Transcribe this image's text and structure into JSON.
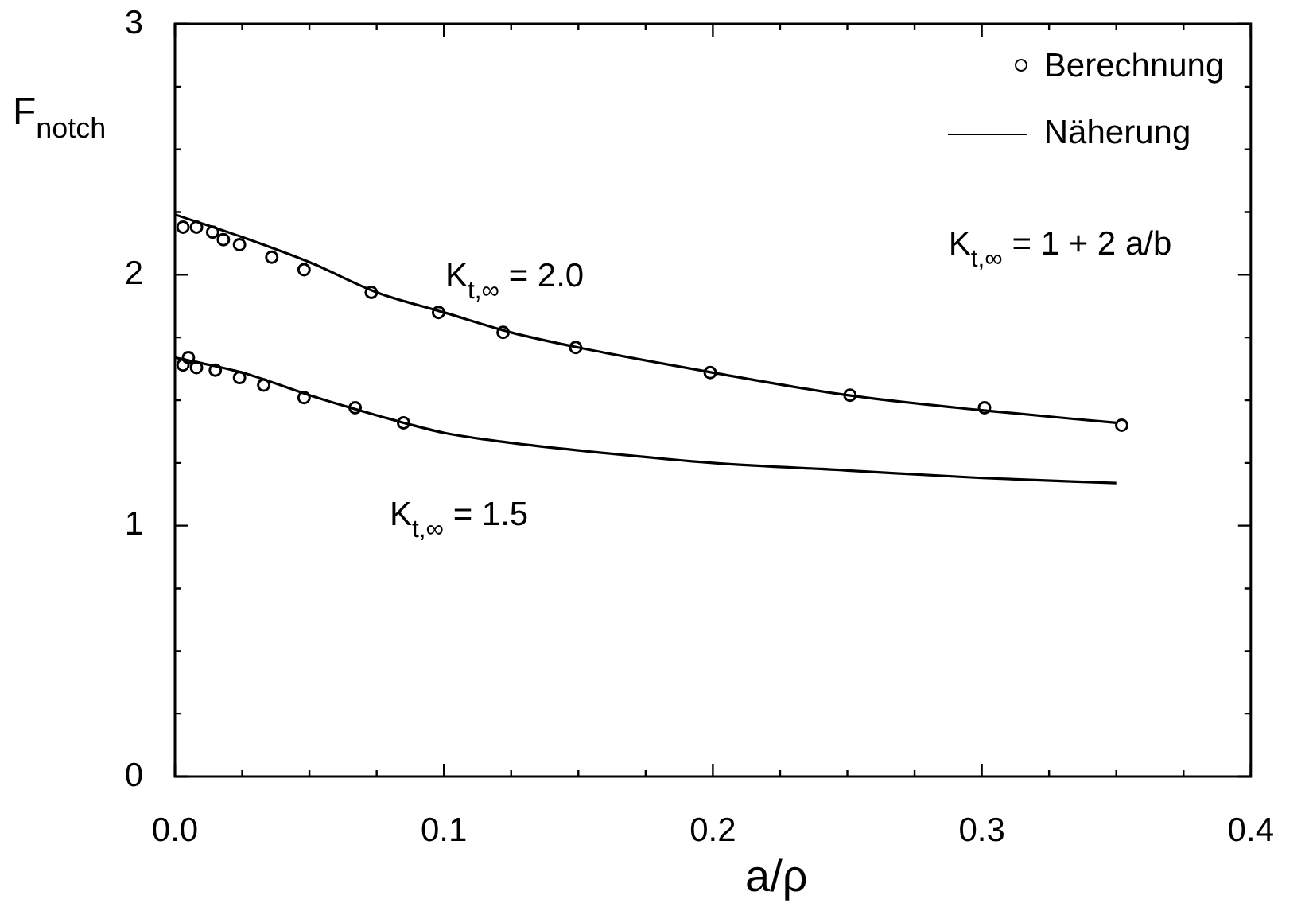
{
  "chart_data": {
    "type": "scatter",
    "xlabel": "a/ρ",
    "ylabel": "F$_{notch}$",
    "xlim": [
      0,
      0.4
    ],
    "ylim": [
      0,
      3
    ],
    "xticks": [
      {
        "value": 0,
        "label": "0.0"
      },
      {
        "value": 0.025,
        "label": null
      },
      {
        "value": 0.05,
        "label": null
      },
      {
        "value": 0.075,
        "label": null
      },
      0.1,
      {
        "value": 0.125,
        "label": null
      },
      {
        "value": 0.15,
        "label": null
      },
      {
        "value": 0.175,
        "label": null
      },
      0.2,
      {
        "value": 0.225,
        "label": null
      },
      {
        "value": 0.25,
        "label": null
      },
      {
        "value": 0.275,
        "label": null
      },
      0.3,
      {
        "value": 0.325,
        "label": null
      },
      {
        "value": 0.35,
        "label": null
      },
      {
        "value": 0.375,
        "label": null
      },
      0.4
    ],
    "yticks": [
      0,
      {
        "value": 0.25,
        "label": null
      },
      {
        "value": 0.5,
        "label": null
      },
      {
        "value": 0.75,
        "label": null
      },
      1,
      {
        "value": 1.25,
        "label": null
      },
      {
        "value": 1.5,
        "label": null
      },
      {
        "value": 1.75,
        "label": null
      },
      2,
      {
        "value": 2.25,
        "label": null
      },
      {
        "value": 2.5,
        "label": null
      },
      {
        "value": 2.75,
        "label": null
      },
      3
    ],
    "grid": false,
    "legend": "top right",
    "series": [
      {
        "name": "Berechnung",
        "type": "scatter",
        "marker": "circle",
        "color": "#000000",
        "x": [
          0.003,
          0.008,
          0.014,
          0.018,
          0.024,
          0.036,
          0.048,
          0.073,
          0.098,
          0.122,
          0.149,
          0.199,
          0.251,
          0.301,
          0.352
        ],
        "values": [
          2.19,
          2.19,
          2.17,
          2.14,
          2.12,
          2.07,
          2.02,
          1.93,
          1.85,
          1.77,
          1.71,
          1.61,
          1.52,
          1.47,
          1.4
        ]
      },
      {
        "type": "scatter",
        "marker": "circle",
        "color": "#000000",
        "x": [
          0.005,
          0.003,
          0.008,
          0.015,
          0.024,
          0.033,
          0.048,
          0.067,
          0.085
        ],
        "values": [
          1.67,
          1.64,
          1.63,
          1.62,
          1.59,
          1.56,
          1.51,
          1.47,
          1.41
        ]
      },
      {
        "name": "Näherung",
        "type": "line",
        "marker": "none",
        "line_style": "solid",
        "color": "#000000",
        "x": [
          0,
          0.025,
          0.05,
          0.075,
          0.1,
          0.125,
          0.15,
          0.2,
          0.25,
          0.3,
          0.35
        ],
        "values": [
          2.24,
          2.15,
          2.05,
          1.93,
          1.85,
          1.77,
          1.71,
          1.61,
          1.52,
          1.46,
          1.41
        ]
      },
      {
        "type": "line",
        "marker": "none",
        "line_style": "solid",
        "color": "#000000",
        "x": [
          0,
          0.025,
          0.05,
          0.075,
          0.1,
          0.125,
          0.15,
          0.2,
          0.25,
          0.3,
          0.35
        ],
        "values": [
          1.67,
          1.61,
          1.52,
          1.44,
          1.37,
          1.33,
          1.3,
          1.25,
          1.22,
          1.19,
          1.17
        ]
      }
    ],
    "annotations": [
      "K$_{t,∞}$ = 2.0",
      "K$_{t,∞}$ = 1.5",
      "K$_{t,∞}$ = 1 + 2 a/b"
    ]
  }
}
